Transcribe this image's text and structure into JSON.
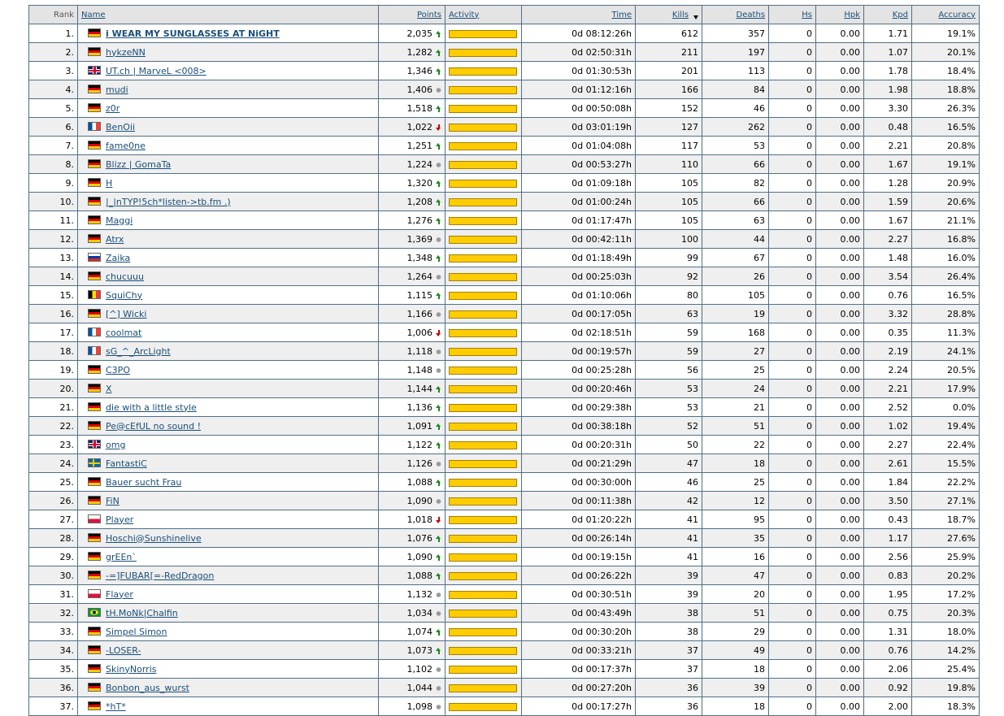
{
  "table": {
    "headers": [
      "Rank",
      "Name",
      "Points",
      "Activity",
      "Time",
      "Kills",
      "Deaths",
      "Hs",
      "Hpk",
      "Kpd",
      "Accuracy"
    ],
    "sorted_by": "Kills",
    "rows": [
      {
        "flag": "de",
        "trend": "up",
        "cells": [
          "1.",
          "i WEAR MY SUNGLASSES AT NiGHT",
          "2,035",
          "0d 08:12:26h",
          "612",
          "357",
          "0",
          "0.00",
          "1.71",
          "19.1%"
        ]
      },
      {
        "flag": "de",
        "trend": "up",
        "cells": [
          "2.",
          "hykzeNN",
          "1,282",
          "0d 02:50:31h",
          "211",
          "197",
          "0",
          "0.00",
          "1.07",
          "20.1%"
        ]
      },
      {
        "flag": "gb",
        "trend": "up",
        "cells": [
          "3.",
          "UT.ch | MarveL <008>",
          "1,346",
          "0d 01:30:53h",
          "201",
          "113",
          "0",
          "0.00",
          "1.78",
          "18.4%"
        ]
      },
      {
        "flag": "de",
        "trend": "same",
        "cells": [
          "4.",
          "mudi",
          "1,406",
          "0d 01:12:16h",
          "166",
          "84",
          "0",
          "0.00",
          "1.98",
          "18.8%"
        ]
      },
      {
        "flag": "de",
        "trend": "up",
        "cells": [
          "5.",
          "z0r",
          "1,518",
          "0d 00:50:08h",
          "152",
          "46",
          "0",
          "0.00",
          "3.30",
          "26.3%"
        ]
      },
      {
        "flag": "fr",
        "trend": "down",
        "cells": [
          "6.",
          "BenOii",
          "1,022",
          "0d 03:01:19h",
          "127",
          "262",
          "0",
          "0.00",
          "0.48",
          "16.5%"
        ]
      },
      {
        "flag": "de",
        "trend": "up",
        "cells": [
          "7.",
          "fame0ne",
          "1,251",
          "0d 01:04:08h",
          "117",
          "53",
          "0",
          "0.00",
          "2.21",
          "20.8%"
        ]
      },
      {
        "flag": "de",
        "trend": "same",
        "cells": [
          "8.",
          "Blizz | GomaTa",
          "1,224",
          "0d 00:53:27h",
          "110",
          "66",
          "0",
          "0.00",
          "1.67",
          "19.1%"
        ]
      },
      {
        "flag": "de",
        "trend": "up",
        "cells": [
          "9.",
          "H",
          "1,320",
          "0d 01:09:18h",
          "105",
          "82",
          "0",
          "0.00",
          "1.28",
          "20.9%"
        ]
      },
      {
        "flag": "de",
        "trend": "up",
        "cells": [
          "10.",
          "|_|nTYP!5ch*listen->tb.fm .)",
          "1,208",
          "0d 01:00:24h",
          "105",
          "66",
          "0",
          "0.00",
          "1.59",
          "20.6%"
        ]
      },
      {
        "flag": "de",
        "trend": "up",
        "cells": [
          "11.",
          "Maggi",
          "1,276",
          "0d 01:17:47h",
          "105",
          "63",
          "0",
          "0.00",
          "1.67",
          "21.1%"
        ]
      },
      {
        "flag": "de",
        "trend": "same",
        "cells": [
          "12.",
          "Atrx",
          "1,369",
          "0d 00:42:11h",
          "100",
          "44",
          "0",
          "0.00",
          "2.27",
          "16.8%"
        ]
      },
      {
        "flag": "ru",
        "trend": "up",
        "cells": [
          "13.",
          "Zaika",
          "1,348",
          "0d 01:18:49h",
          "99",
          "67",
          "0",
          "0.00",
          "1.48",
          "16.0%"
        ]
      },
      {
        "flag": "de",
        "trend": "same",
        "cells": [
          "14.",
          "chucuuu",
          "1,264",
          "0d 00:25:03h",
          "92",
          "26",
          "0",
          "0.00",
          "3.54",
          "26.4%"
        ]
      },
      {
        "flag": "be",
        "trend": "up",
        "cells": [
          "15.",
          "SquiChy",
          "1,115",
          "0d 01:10:06h",
          "80",
          "105",
          "0",
          "0.00",
          "0.76",
          "16.5%"
        ]
      },
      {
        "flag": "de",
        "trend": "same",
        "cells": [
          "16.",
          "[^] Wicki",
          "1,166",
          "0d 00:17:05h",
          "63",
          "19",
          "0",
          "0.00",
          "3.32",
          "28.8%"
        ]
      },
      {
        "flag": "fr",
        "trend": "down",
        "cells": [
          "17.",
          "coolmat",
          "1,006",
          "0d 02:18:51h",
          "59",
          "168",
          "0",
          "0.00",
          "0.35",
          "11.3%"
        ]
      },
      {
        "flag": "fr",
        "trend": "same",
        "cells": [
          "18.",
          "sG_^_ArcLight",
          "1,118",
          "0d 00:19:57h",
          "59",
          "27",
          "0",
          "0.00",
          "2.19",
          "24.1%"
        ]
      },
      {
        "flag": "de",
        "trend": "same",
        "cells": [
          "19.",
          "C3PO",
          "1,148",
          "0d 00:25:28h",
          "56",
          "25",
          "0",
          "0.00",
          "2.24",
          "20.5%"
        ]
      },
      {
        "flag": "de",
        "trend": "up",
        "cells": [
          "20.",
          "X",
          "1,144",
          "0d 00:20:46h",
          "53",
          "24",
          "0",
          "0.00",
          "2.21",
          "17.9%"
        ]
      },
      {
        "flag": "de",
        "trend": "up",
        "cells": [
          "21.",
          "die with a little style",
          "1,136",
          "0d 00:29:38h",
          "53",
          "21",
          "0",
          "0.00",
          "2.52",
          "0.0%"
        ]
      },
      {
        "flag": "de",
        "trend": "up",
        "cells": [
          "22.",
          "Pe@cEfUL no sound !",
          "1,091",
          "0d 00:38:18h",
          "52",
          "51",
          "0",
          "0.00",
          "1.02",
          "19.4%"
        ]
      },
      {
        "flag": "gb",
        "trend": "up",
        "cells": [
          "23.",
          "omg",
          "1,122",
          "0d 00:20:31h",
          "50",
          "22",
          "0",
          "0.00",
          "2.27",
          "22.4%"
        ]
      },
      {
        "flag": "se",
        "trend": "same",
        "cells": [
          "24.",
          "FantastiC",
          "1,126",
          "0d 00:21:29h",
          "47",
          "18",
          "0",
          "0.00",
          "2.61",
          "15.5%"
        ]
      },
      {
        "flag": "de",
        "trend": "up",
        "cells": [
          "25.",
          "Bauer sucht Frau",
          "1,088",
          "0d 00:30:00h",
          "46",
          "25",
          "0",
          "0.00",
          "1.84",
          "22.2%"
        ]
      },
      {
        "flag": "de",
        "trend": "same",
        "cells": [
          "26.",
          "FiN",
          "1,090",
          "0d 00:11:38h",
          "42",
          "12",
          "0",
          "0.00",
          "3.50",
          "27.1%"
        ]
      },
      {
        "flag": "pl",
        "trend": "down",
        "cells": [
          "27.",
          "Player",
          "1,018",
          "0d 01:20:22h",
          "41",
          "95",
          "0",
          "0.00",
          "0.43",
          "18.7%"
        ]
      },
      {
        "flag": "de",
        "trend": "up",
        "cells": [
          "28.",
          "Hoschi@Sunshinelive",
          "1,076",
          "0d 00:26:14h",
          "41",
          "35",
          "0",
          "0.00",
          "1.17",
          "27.6%"
        ]
      },
      {
        "flag": "de",
        "trend": "up",
        "cells": [
          "29.",
          "grEEn`",
          "1,090",
          "0d 00:19:15h",
          "41",
          "16",
          "0",
          "0.00",
          "2.56",
          "25.9%"
        ]
      },
      {
        "flag": "de",
        "trend": "up",
        "cells": [
          "30.",
          "-=]FUBAR[=-RedDragon",
          "1,088",
          "0d 00:26:22h",
          "39",
          "47",
          "0",
          "0.00",
          "0.83",
          "20.2%"
        ]
      },
      {
        "flag": "pl",
        "trend": "same",
        "cells": [
          "31.",
          "Flayer",
          "1,132",
          "0d 00:30:51h",
          "39",
          "20",
          "0",
          "0.00",
          "1.95",
          "17.2%"
        ]
      },
      {
        "flag": "br",
        "trend": "same",
        "cells": [
          "32.",
          "tH.MoNk|Chalfin",
          "1,034",
          "0d 00:43:49h",
          "38",
          "51",
          "0",
          "0.00",
          "0.75",
          "20.3%"
        ]
      },
      {
        "flag": "de",
        "trend": "up",
        "cells": [
          "33.",
          "Simpel Simon",
          "1,074",
          "0d 00:30:20h",
          "38",
          "29",
          "0",
          "0.00",
          "1.31",
          "18.0%"
        ]
      },
      {
        "flag": "de",
        "trend": "up",
        "cells": [
          "34.",
          "-LOSER-",
          "1,073",
          "0d 00:33:21h",
          "37",
          "49",
          "0",
          "0.00",
          "0.76",
          "14.2%"
        ]
      },
      {
        "flag": "de",
        "trend": "same",
        "cells": [
          "35.",
          "SkinyNorris",
          "1,102",
          "0d 00:17:37h",
          "37",
          "18",
          "0",
          "0.00",
          "2.06",
          "25.4%"
        ]
      },
      {
        "flag": "de",
        "trend": "same",
        "cells": [
          "36.",
          "Bonbon_aus_wurst",
          "1,044",
          "0d 00:27:20h",
          "36",
          "39",
          "0",
          "0.00",
          "0.92",
          "19.8%"
        ]
      },
      {
        "flag": "de",
        "trend": "same",
        "cells": [
          "37.",
          "*hT*",
          "1,098",
          "0d 00:17:27h",
          "36",
          "18",
          "0",
          "0.00",
          "2.00",
          "18.3%"
        ]
      }
    ]
  }
}
